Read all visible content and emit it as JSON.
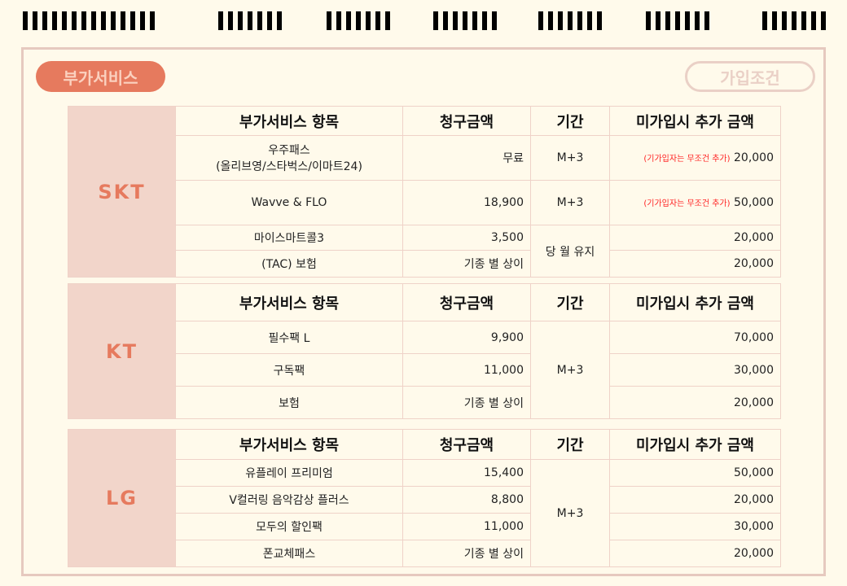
{
  "tabs": {
    "active": "부가서비스",
    "inactive": "가입조건"
  },
  "headers": [
    "부가서비스 항목",
    "청구금액",
    "기간",
    "미가입시 추가 금액"
  ],
  "note": "(기가입자는 무조건 추가)",
  "colors": {
    "accent": "#e67a5e",
    "carrier_bg": "#f2d5ca",
    "border": "#e6c9bf",
    "background": "#fffaeb",
    "note": "#ff2222"
  },
  "skt": {
    "name": "SKT",
    "rows": [
      {
        "item": "우주패스",
        "item2": "(올리브영/스타벅스/이마트24)",
        "price": "무료",
        "period": "M+3",
        "extra": "20,000"
      },
      {
        "item": "Wavve & FLO",
        "price": "18,900",
        "period": "M+3",
        "extra": "50,000"
      },
      {
        "item": "마이스마트콜3",
        "price": "3,500",
        "period": "당 월 유지",
        "extra": "20,000"
      },
      {
        "item": "(TAC) 보험",
        "price": "기종 별 상이",
        "extra": "20,000"
      }
    ]
  },
  "kt": {
    "name": "KT",
    "period": "M+3",
    "rows": [
      {
        "item": "필수팩 L",
        "price": "9,900",
        "extra": "70,000"
      },
      {
        "item": "구독팩",
        "price": "11,000",
        "extra": "30,000"
      },
      {
        "item": "보험",
        "price": "기종 별 상이",
        "extra": "20,000"
      }
    ]
  },
  "lg": {
    "name": "LG",
    "period": "M+3",
    "rows": [
      {
        "item": "유플레이 프리미엄",
        "price": "15,400",
        "extra": "50,000"
      },
      {
        "item": "V컬러링 음악감상 플러스",
        "price": "8,800",
        "extra": "20,000"
      },
      {
        "item": "모두의 할인팩",
        "price": "11,000",
        "extra": "30,000"
      },
      {
        "item": "폰교체패스",
        "price": "기종 별 상이",
        "extra": "20,000"
      }
    ]
  }
}
